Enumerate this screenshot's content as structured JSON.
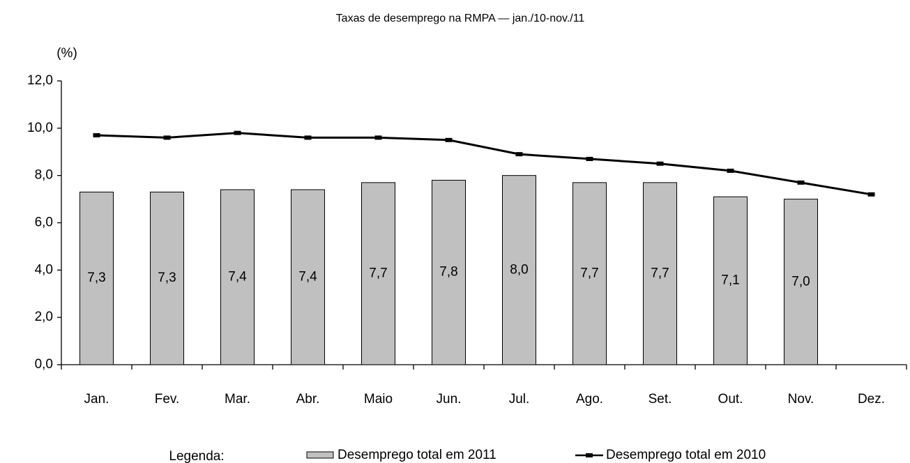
{
  "chart_data": {
    "type": "bar",
    "title": "Taxas de desemprego na RMPA — jan./10-nov./11",
    "y_label": "(%)",
    "legend_label": "Legenda:",
    "categories": [
      "Jan.",
      "Fev.",
      "Mar.",
      "Abr.",
      "Maio",
      "Jun.",
      "Jul.",
      "Ago.",
      "Set.",
      "Out.",
      "Nov.",
      "Dez."
    ],
    "series": [
      {
        "name": "Desemprego total em 2011",
        "type": "bar",
        "color": "#c0c0c0",
        "values": [
          7.3,
          7.3,
          7.4,
          7.4,
          7.7,
          7.8,
          8.0,
          7.7,
          7.7,
          7.1,
          7.0,
          null
        ],
        "value_labels": [
          "7,3",
          "7,3",
          "7,4",
          "7,4",
          "7,7",
          "7,8",
          "8,0",
          "7,7",
          "7,7",
          "7,1",
          "7,0",
          null
        ]
      },
      {
        "name": "Desemprego total em 2010",
        "type": "line",
        "color": "#000000",
        "values": [
          9.7,
          9.6,
          9.8,
          9.6,
          9.6,
          9.5,
          8.9,
          8.7,
          8.5,
          8.2,
          7.7,
          7.2
        ]
      }
    ],
    "ylim": [
      0,
      12
    ],
    "yticks": [
      {
        "value": 0,
        "label": "0,0"
      },
      {
        "value": 2,
        "label": "2,0"
      },
      {
        "value": 4,
        "label": "4,0"
      },
      {
        "value": 6,
        "label": "6,0"
      },
      {
        "value": 8,
        "label": "8,0"
      },
      {
        "value": 10,
        "label": "10,0"
      },
      {
        "value": 12,
        "label": "12,0"
      }
    ],
    "grid": false
  }
}
